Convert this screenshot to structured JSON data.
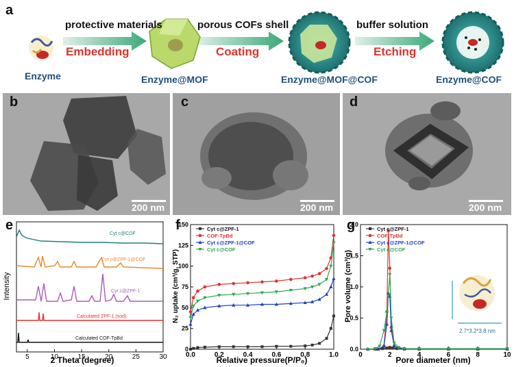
{
  "panels": {
    "a": "a",
    "b": "b",
    "c": "c",
    "d": "d",
    "e": "e",
    "f": "f",
    "g": "g"
  },
  "scheme": {
    "steps": [
      "protective materials",
      "porous COFs shell",
      "buffer solution"
    ],
    "actions": [
      "Embedding",
      "Coating",
      "Etching"
    ],
    "captions": [
      "Enzyme",
      "Enzyme@MOF",
      "Enzyme@MOF@COF",
      "Enzyme@COF"
    ]
  },
  "tem": {
    "scale": "200 nm"
  },
  "colors": {
    "teal": "#1f7f7f",
    "orange": "#e8892a",
    "purple": "#a85bc0",
    "red": "#e0332d",
    "black": "#333333",
    "blue": "#1f3fbf",
    "green": "#2fa84f",
    "accent": "#e0332d"
  },
  "chart_data": [
    {
      "type": "line",
      "panel": "e",
      "xlabel": "2 Theta (degree)",
      "ylabel": "Intensity",
      "xlim": [
        3,
        30
      ],
      "xticks": [
        "5",
        "10",
        "15",
        "20",
        "25",
        "30"
      ],
      "series": [
        {
          "name": "Cyt c@COF",
          "color": "#1f7f7f"
        },
        {
          "name": "Cyt c@ZPF-1@COF",
          "color": "#e8892a"
        },
        {
          "name": "Cyt c@ZPF-1",
          "color": "#a85bc0"
        },
        {
          "name": "Calculated ZPF-1 (sod)",
          "color": "#e0332d"
        },
        {
          "name": "Calculated COF-TpBd",
          "color": "#111111"
        }
      ]
    },
    {
      "type": "line",
      "panel": "f",
      "xlabel": "Relative pressure(P/P₀)",
      "ylabel": "N₂ uptake (cm³/g, STP)",
      "xlim": [
        0,
        1
      ],
      "ylim": [
        0,
        150
      ],
      "xticks": [
        "0.0",
        "0.2",
        "0.4",
        "0.6",
        "0.8",
        "1.0"
      ],
      "yticks": [
        "0",
        "25",
        "50",
        "75",
        "100",
        "125",
        "150"
      ],
      "x": [
        0.0,
        0.02,
        0.05,
        0.1,
        0.2,
        0.3,
        0.4,
        0.5,
        0.6,
        0.7,
        0.8,
        0.85,
        0.9,
        0.95,
        0.98,
        1.0
      ],
      "series": [
        {
          "name": "Cyt c@ZPF-1",
          "color": "#333333",
          "marker": "square",
          "values": [
            0,
            1,
            2,
            2.5,
            3,
            3,
            3,
            3,
            3.5,
            3.5,
            4,
            5,
            7,
            13,
            25,
            40
          ]
        },
        {
          "name": "COF-TpBd",
          "color": "#e0332d",
          "marker": "circle",
          "values": [
            45,
            62,
            70,
            75,
            78,
            79,
            80,
            81,
            82,
            84,
            86,
            88,
            91,
            97,
            110,
            137
          ]
        },
        {
          "name": "Cyt c@ZPF-1@COF",
          "color": "#1f3fbf",
          "marker": "triangle",
          "values": [
            30,
            42,
            47,
            50,
            52,
            53,
            53,
            54,
            54,
            55,
            56,
            57,
            60,
            66,
            75,
            85
          ]
        },
        {
          "name": "Cyt c@COF",
          "color": "#2fa84f",
          "marker": "triangle-down",
          "values": [
            38,
            52,
            58,
            62,
            65,
            66,
            67,
            68,
            69,
            71,
            73,
            75,
            78,
            84,
            100,
            128
          ]
        }
      ]
    },
    {
      "type": "line",
      "panel": "g",
      "xlabel": "Pore diameter (nm)",
      "ylabel": "Pore volume (cm³/g)",
      "xlim": [
        0,
        10
      ],
      "ylim": [
        0,
        2.0
      ],
      "xticks": [
        "0",
        "2",
        "4",
        "6",
        "8",
        "10"
      ],
      "yticks": [
        "0.0",
        "0.5",
        "1.0",
        "1.5",
        "2.0"
      ],
      "annotation": "2.7*3.2*3.8 nm",
      "series": [
        {
          "name": "Cyt c@ZPF-1",
          "color": "#333333",
          "marker": "square",
          "x": [
            0.5,
            1.0,
            1.5,
            1.8,
            2.0,
            2.2,
            2.5,
            3,
            4,
            6,
            8,
            10
          ],
          "values": [
            0,
            0,
            0.01,
            0.02,
            0.03,
            0.02,
            0.01,
            0,
            0,
            0,
            0,
            0
          ]
        },
        {
          "name": "COF-TpBd",
          "color": "#e0332d",
          "marker": "circle",
          "x": [
            0.5,
            1.2,
            1.6,
            1.8,
            1.9,
            2.0,
            2.1,
            2.3,
            2.6,
            3,
            4,
            6,
            8,
            10
          ],
          "values": [
            0,
            0,
            0.05,
            0.6,
            1.9,
            1.3,
            0.35,
            0.05,
            0.02,
            0.01,
            0.01,
            0.01,
            0.01,
            0.01
          ]
        },
        {
          "name": "Cyt c@ZPF-1@COF",
          "color": "#1f3fbf",
          "marker": "triangle",
          "x": [
            0.5,
            1.2,
            1.6,
            1.8,
            1.9,
            2.0,
            2.1,
            2.3,
            2.6,
            3,
            4,
            6,
            8,
            10
          ],
          "values": [
            0,
            0,
            0.05,
            0.4,
            0.9,
            0.85,
            0.3,
            0.05,
            0.02,
            0.01,
            0.01,
            0.01,
            0.01,
            0.01
          ]
        },
        {
          "name": "Cyt c@COF",
          "color": "#2fa84f",
          "marker": "triangle-down",
          "x": [
            0.5,
            1.0,
            1.3,
            1.6,
            1.8,
            2.0,
            2.1,
            2.3,
            2.6,
            3,
            4,
            6,
            8,
            10
          ],
          "values": [
            0,
            0.01,
            0.05,
            0.3,
            0.6,
            1.2,
            0.5,
            0.1,
            0.03,
            0.01,
            0.01,
            0.01,
            0.01,
            0.01
          ]
        }
      ]
    }
  ]
}
